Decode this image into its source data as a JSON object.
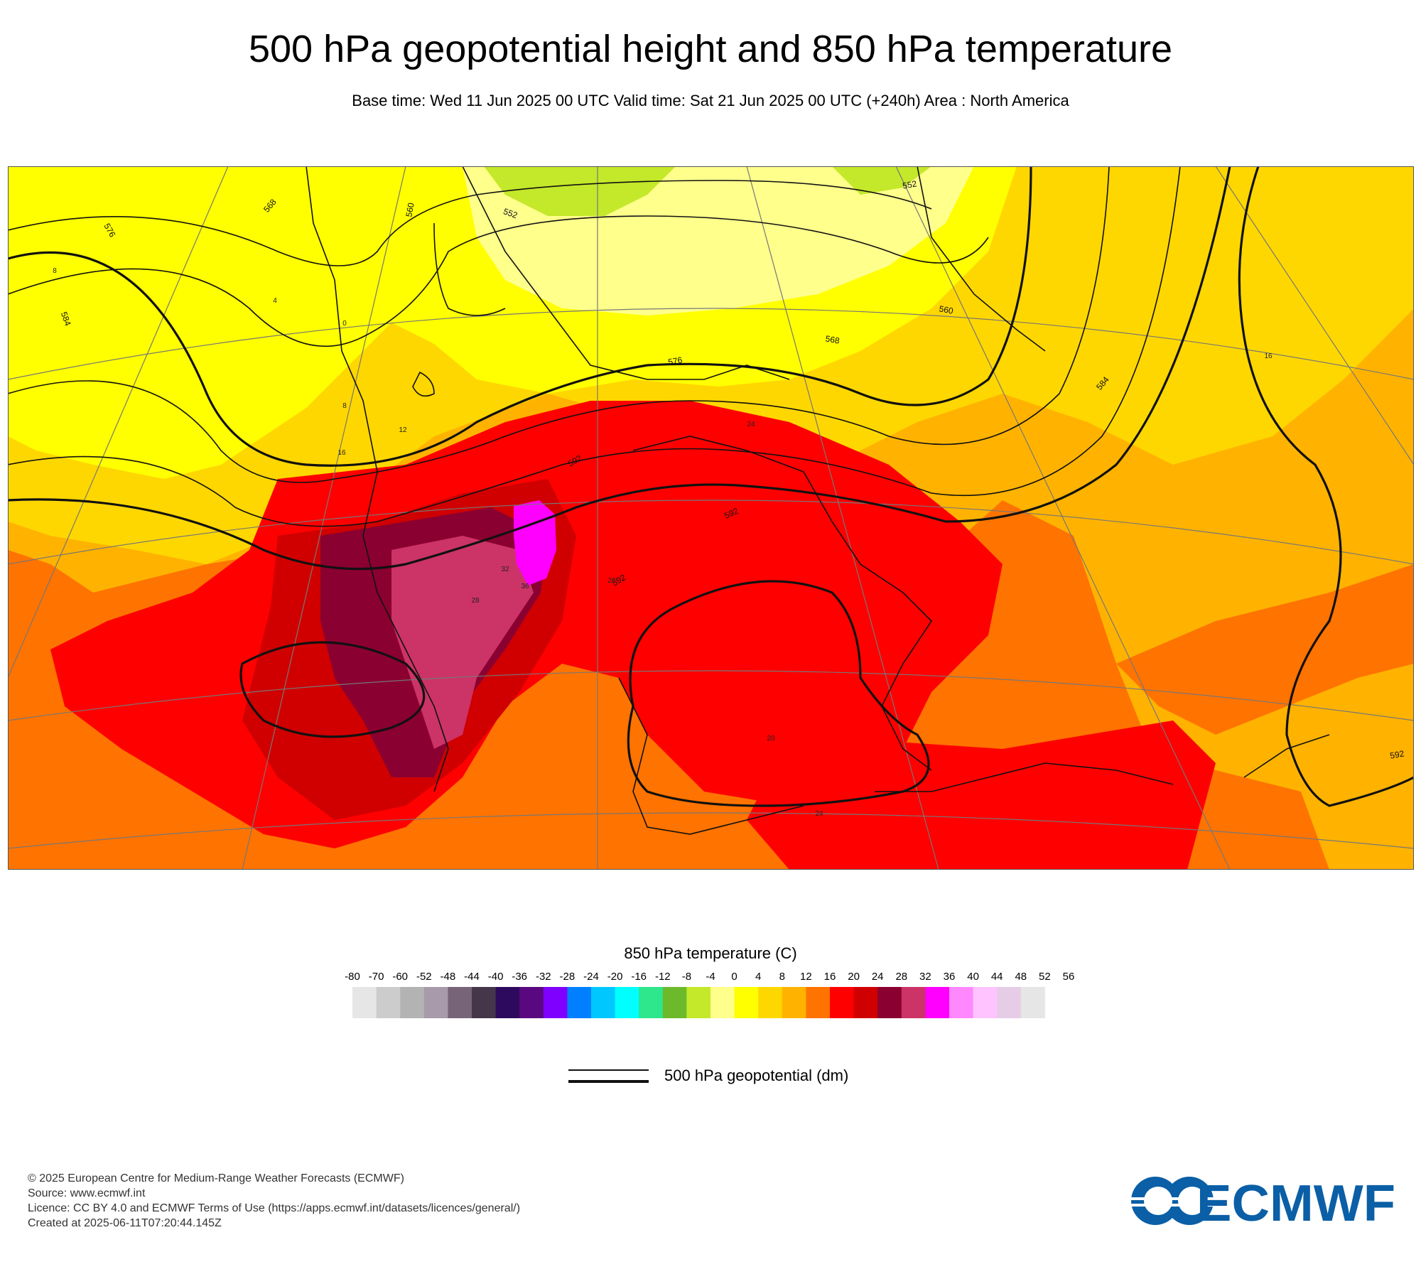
{
  "header": {
    "title": "500 hPa geopotential height and 850 hPa temperature",
    "subtitle": "Base time: Wed 11 Jun 2025 00 UTC Valid time: Sat 21 Jun 2025 00 UTC (+240h) Area : North America"
  },
  "map": {
    "contour_labels": [
      "576",
      "568",
      "560",
      "552",
      "584",
      "592",
      "560",
      "552",
      "568",
      "576",
      "592",
      "584",
      "592",
      "592"
    ],
    "temp_labels": [
      "8",
      "4",
      "0",
      "8",
      "12",
      "16",
      "32",
      "36",
      "28",
      "24",
      "20",
      "28",
      "24",
      "16"
    ]
  },
  "colorbar": {
    "title": "850 hPa temperature (C)",
    "ticks": [
      "-80",
      "-70",
      "-60",
      "-52",
      "-48",
      "-44",
      "-40",
      "-36",
      "-32",
      "-28",
      "-24",
      "-20",
      "-16",
      "-12",
      "-8",
      "-4",
      "0",
      "4",
      "8",
      "12",
      "16",
      "20",
      "24",
      "28",
      "32",
      "36",
      "40",
      "44",
      "48",
      "52",
      "56"
    ],
    "colors": [
      "#e6e6e6",
      "#cccccc",
      "#b3b3b3",
      "#a89aaa",
      "#776478",
      "#45364a",
      "#2e0a5e",
      "#5a087f",
      "#8000ff",
      "#0080ff",
      "#00c8ff",
      "#00ffff",
      "#2ee68c",
      "#6cba2c",
      "#c4e82a",
      "#ffff8c",
      "#ffff00",
      "#ffd700",
      "#ffb300",
      "#ff7300",
      "#ff0000",
      "#d00000",
      "#8a0030",
      "#cc3366",
      "#ff00ff",
      "#ff88ff",
      "#ffc4ff",
      "#e6cce6",
      "#e6e6e6"
    ]
  },
  "legend": {
    "label": "500 hPa geopotential (dm)"
  },
  "footer": {
    "line1": "© 2025 European Centre for Medium-Range Weather Forecasts (ECMWF)",
    "line2": "Source: www.ecmwf.int",
    "line3": "Licence: CC BY 4.0 and ECMWF Terms of Use (https://apps.ecmwf.int/datasets/licences/general/)",
    "line4": "Created at 2025-06-11T07:20:44.145Z"
  },
  "logo": {
    "text": "ECMWF",
    "color": "#0a5fa6"
  }
}
